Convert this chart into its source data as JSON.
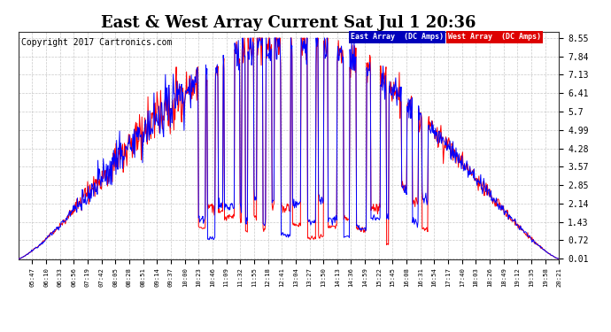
{
  "title": "East & West Array Current Sat Jul 1 20:36",
  "copyright": "Copyright 2017 Cartronics.com",
  "legend_east": "East Array  (DC Amps)",
  "legend_west": "West Array  (DC Amps)",
  "east_color": "#0000ff",
  "west_color": "#ff0000",
  "legend_east_bg": "#0000bb",
  "legend_west_bg": "#dd0000",
  "background_color": "#ffffff",
  "plot_bg_color": "#ffffff",
  "grid_color": "#bbbbbb",
  "yticks": [
    0.01,
    0.72,
    1.43,
    2.14,
    2.85,
    3.57,
    4.28,
    4.99,
    5.7,
    6.41,
    7.13,
    7.84,
    8.55
  ],
  "ylim": [
    0.0,
    8.8
  ],
  "title_fontsize": 13,
  "label_fontsize": 7,
  "copyright_fontsize": 7,
  "xtick_labels": [
    "05:47",
    "06:10",
    "06:33",
    "06:56",
    "07:19",
    "07:42",
    "08:05",
    "08:28",
    "08:51",
    "09:14",
    "09:37",
    "10:00",
    "10:23",
    "10:46",
    "11:09",
    "11:32",
    "11:55",
    "12:18",
    "12:41",
    "13:04",
    "13:27",
    "13:50",
    "14:13",
    "14:36",
    "14:59",
    "15:22",
    "15:45",
    "16:08",
    "16:31",
    "16:54",
    "17:17",
    "17:40",
    "18:03",
    "18:26",
    "18:49",
    "19:12",
    "19:35",
    "19:58",
    "20:21"
  ]
}
